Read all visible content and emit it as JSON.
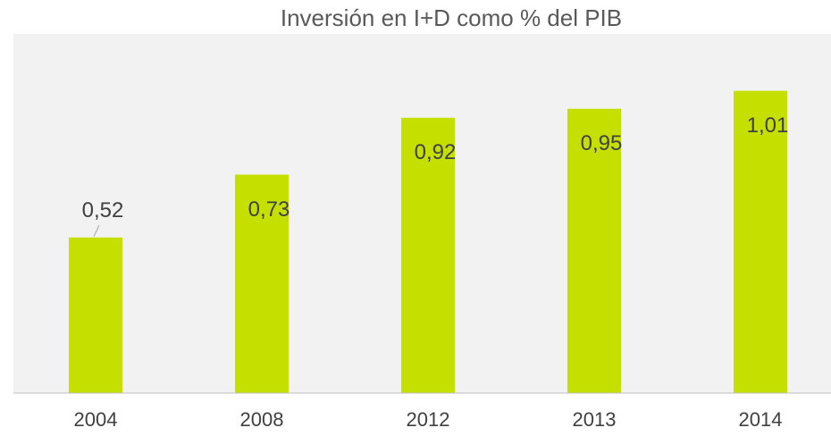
{
  "chart_data": {
    "type": "bar",
    "title": "Inversión en I+D como % del PIB",
    "categories": [
      "2004",
      "2008",
      "2012",
      "2013",
      "2014"
    ],
    "values": [
      0.52,
      0.73,
      0.92,
      0.95,
      1.01
    ],
    "value_labels": [
      "0,52",
      "0,73",
      "0,92",
      "0,95",
      "1,01"
    ],
    "color": "#c5e000",
    "ylim": [
      0,
      1.2
    ]
  }
}
